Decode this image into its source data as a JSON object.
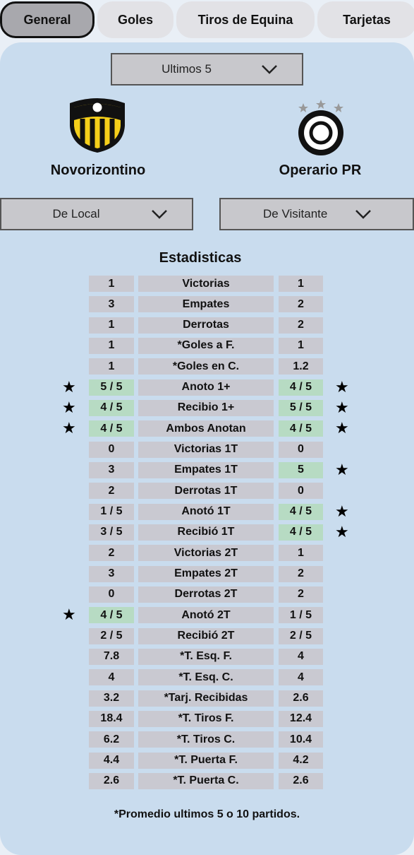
{
  "tabs": [
    "General",
    "Goles",
    "Tiros de Equina",
    "Tarjetas"
  ],
  "active_tab": 0,
  "period_select": "Ultimos 5",
  "home_team": {
    "name": "Novorizontino",
    "filter": "De Local"
  },
  "away_team": {
    "name": "Operario PR",
    "filter": "De Visitante"
  },
  "stats_title": "Estadisticas",
  "rows": [
    {
      "home": "1",
      "label": "Victorias",
      "away": "1"
    },
    {
      "home": "3",
      "label": "Empates",
      "away": "2"
    },
    {
      "home": "1",
      "label": "Derrotas",
      "away": "2"
    },
    {
      "home": "1",
      "label": "*Goles a F.",
      "away": "1"
    },
    {
      "home": "1",
      "label": "*Goles en C.",
      "away": "1.2"
    },
    {
      "home": "5 / 5",
      "label": "Anoto 1+",
      "away": "4 / 5",
      "highlight": "both"
    },
    {
      "home": "4 / 5",
      "label": "Recibio 1+",
      "away": "5 / 5",
      "highlight": "both"
    },
    {
      "home": "4 / 5",
      "label": "Ambos Anotan",
      "away": "4 / 5",
      "highlight": "both"
    },
    {
      "home": "0",
      "label": "Victorias 1T",
      "away": "0"
    },
    {
      "home": "3",
      "label": "Empates 1T",
      "away": "5",
      "highlight": "away"
    },
    {
      "home": "2",
      "label": "Derrotas 1T",
      "away": "0"
    },
    {
      "home": "1 / 5",
      "label": "Anotó 1T",
      "away": "4 / 5",
      "highlight": "away"
    },
    {
      "home": "3 / 5",
      "label": "Recibió 1T",
      "away": "4 / 5",
      "highlight": "away"
    },
    {
      "home": "2",
      "label": "Victorias 2T",
      "away": "1"
    },
    {
      "home": "3",
      "label": "Empates 2T",
      "away": "2"
    },
    {
      "home": "0",
      "label": "Derrotas 2T",
      "away": "2"
    },
    {
      "home": "4 / 5",
      "label": "Anotó 2T",
      "away": "1 / 5",
      "highlight": "home"
    },
    {
      "home": "2 / 5",
      "label": "Recibió 2T",
      "away": "2 / 5"
    },
    {
      "home": "7.8",
      "label": "*T. Esq. F.",
      "away": "4"
    },
    {
      "home": "4",
      "label": "*T. Esq. C.",
      "away": "4"
    },
    {
      "home": "3.2",
      "label": "*Tarj. Recibidas",
      "away": "2.6"
    },
    {
      "home": "18.4",
      "label": "*T. Tiros F.",
      "away": "12.4"
    },
    {
      "home": "6.2",
      "label": "*T. Tiros C.",
      "away": "10.4"
    },
    {
      "home": "4.4",
      "label": "*T. Puerta F.",
      "away": "4.2"
    },
    {
      "home": "2.6",
      "label": "*T. Puerta C.",
      "away": "2.6"
    }
  ],
  "footnote": "*Promedio ultimos 5 o 10 partidos."
}
